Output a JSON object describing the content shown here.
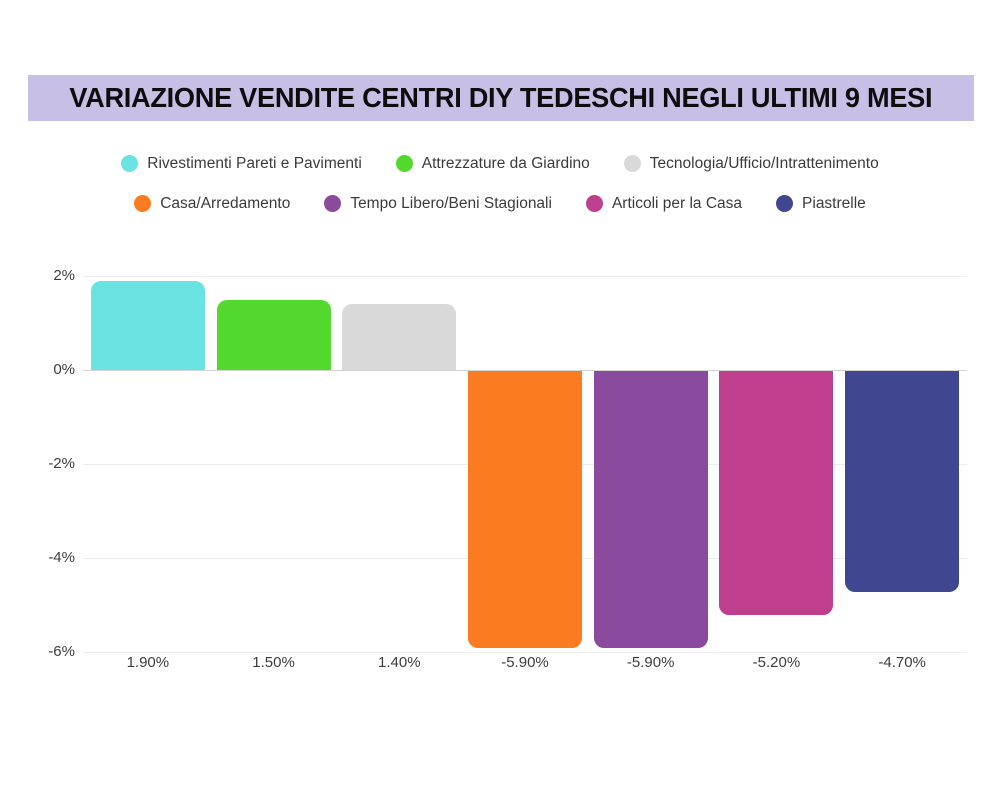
{
  "title": "VARIAZIONE VENDITE CENTRI DIY TEDESCHI NEGLI ULTIMI 9 MESI",
  "chart_data": {
    "type": "bar",
    "title": "VARIAZIONE VENDITE CENTRI DIY TEDESCHI NEGLI ULTIMI 9 MESI",
    "unit": "%",
    "categories": [
      "Rivestimenti Pareti e Pavimenti",
      "Attrezzature da Giardino",
      "Tecnologia/Ufficio/Intrattenimento",
      "Casa/Arredamento",
      "Tempo Libero/Beni Stagionali",
      "Articoli per la Casa",
      "Piastrelle"
    ],
    "values": [
      1.9,
      1.5,
      1.4,
      -5.9,
      -5.9,
      -5.2,
      -4.7
    ],
    "value_labels": [
      "1.90%",
      "1.50%",
      "1.40%",
      "-5.90%",
      "-5.90%",
      "-5.20%",
      "-4.70%"
    ],
    "bar_colors": [
      "#6BE2E2",
      "#53D82D",
      "#D9D9D9",
      "#FB7B21",
      "#8A4A9D",
      "#BD3F8E",
      "#414691"
    ],
    "y_ticks": [
      {
        "label": "2%",
        "value": 2
      },
      {
        "label": "0%",
        "value": 0
      },
      {
        "label": "-2%",
        "value": -2
      },
      {
        "label": "-4%",
        "value": -4
      },
      {
        "label": "-6%",
        "value": -6
      }
    ],
    "ylim": [
      -6,
      2
    ],
    "grid": true,
    "legend_position": "top",
    "legend_rows": [
      [
        0,
        1,
        2
      ],
      [
        3,
        4,
        5,
        6
      ]
    ]
  },
  "colors": {
    "page_bg": "#ffffff",
    "banner_bg": "#C7BFE6",
    "title_text": "#0d0d0d",
    "axis_text": "#3d3d3d",
    "legend_text": "#3b3b3b",
    "grid_line": "#ececec",
    "zero_line": "#d3d3d3"
  }
}
